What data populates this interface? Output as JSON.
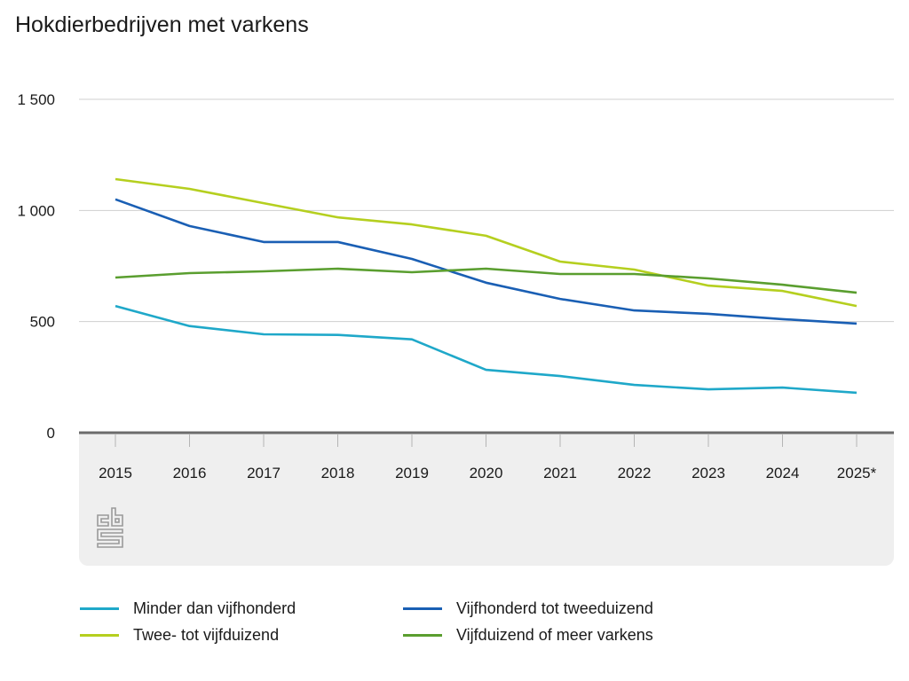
{
  "title": "Hokdierbedrijven met varkens",
  "source_logo": "cbs",
  "chart_data": {
    "type": "line",
    "title": "Hokdierbedrijven met varkens",
    "xlabel": "",
    "ylabel": "",
    "x": [
      "2015",
      "2016",
      "2017",
      "2018",
      "2019",
      "2020",
      "2021",
      "2022",
      "2023",
      "2024",
      "2025*"
    ],
    "ylim": [
      0,
      1500
    ],
    "yticks": [
      0,
      500,
      1000,
      1500
    ],
    "ytick_labels": [
      "0",
      "500",
      "1 000",
      "1 500"
    ],
    "grid": true,
    "legend_position": "bottom",
    "series": [
      {
        "name": "Minder dan vijfhonderd",
        "color": "#1fa8c9",
        "values": [
          570,
          480,
          443,
          440,
          420,
          283,
          255,
          215,
          195,
          203,
          180
        ]
      },
      {
        "name": "Vijfhonderd tot tweeduizend",
        "color": "#1a5fb4",
        "values": [
          1050,
          930,
          858,
          858,
          782,
          675,
          602,
          550,
          535,
          511,
          491
        ]
      },
      {
        "name": "Twee- tot vijfduizend",
        "color": "#b5cf1f",
        "values": [
          1141,
          1097,
          1033,
          969,
          937,
          886,
          770,
          734,
          662,
          638,
          570
        ]
      },
      {
        "name": "Vijfduizend of meer varkens",
        "color": "#5a9e2f",
        "values": [
          698,
          718,
          726,
          738,
          722,
          738,
          714,
          714,
          694,
          666,
          630
        ]
      }
    ]
  },
  "legend": [
    {
      "label": "Minder dan vijfhonderd",
      "color": "#1fa8c9"
    },
    {
      "label": "Vijfhonderd tot tweeduizend",
      "color": "#1a5fb4"
    },
    {
      "label": "Twee- tot vijfduizend",
      "color": "#b5cf1f"
    },
    {
      "label": "Vijfduizend of meer varkens",
      "color": "#5a9e2f"
    }
  ]
}
